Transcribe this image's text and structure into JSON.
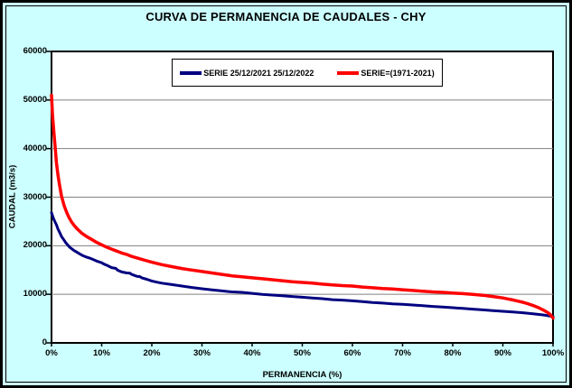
{
  "title": "CURVA DE PERMANENCIA DE CAUDALES - CHY",
  "colors": {
    "background": "#CCFFFF",
    "plot_background": "#FFFFFF",
    "gridline": "#808080",
    "axis": "#000000",
    "series_blue": "#000080",
    "series_red": "#FF0000"
  },
  "chart_data": {
    "type": "line",
    "title": "CURVA DE PERMANENCIA DE CAUDALES - CHY",
    "xlabel": "PERMANENCIA (%)",
    "ylabel": "CAUDAL (m3/s)",
    "xlim": [
      0,
      100
    ],
    "ylim": [
      0,
      60000
    ],
    "y_ticks": [
      0,
      10000,
      20000,
      30000,
      40000,
      50000,
      60000
    ],
    "x_ticks": [
      0,
      10,
      20,
      30,
      40,
      50,
      60,
      70,
      80,
      90,
      100
    ],
    "x_tick_labels": [
      "0%",
      "10%",
      "20%",
      "30%",
      "40%",
      "50%",
      "60%",
      "70%",
      "80%",
      "90%",
      "100%"
    ],
    "grid": "horizontal-only",
    "legend_position": "top-center",
    "series": [
      {
        "name": "SERIE 25/12/2021 25/12/2022",
        "color": "#000080",
        "line_width": 3,
        "points": [
          [
            0,
            26800
          ],
          [
            0.4,
            25600
          ],
          [
            0.8,
            24700
          ],
          [
            1,
            24300
          ],
          [
            1.3,
            23400
          ],
          [
            1.6,
            22800
          ],
          [
            2,
            21900
          ],
          [
            2.4,
            21300
          ],
          [
            2.8,
            20700
          ],
          [
            3.2,
            20200
          ],
          [
            3.6,
            19700
          ],
          [
            4,
            19400
          ],
          [
            4.5,
            19000
          ],
          [
            5,
            18700
          ],
          [
            5.5,
            18400
          ],
          [
            6,
            18100
          ],
          [
            6.5,
            17850
          ],
          [
            7,
            17650
          ],
          [
            7.5,
            17500
          ],
          [
            8,
            17300
          ],
          [
            9,
            16850
          ],
          [
            10,
            16500
          ],
          [
            10.5,
            16200
          ],
          [
            11,
            16000
          ],
          [
            12,
            15500
          ],
          [
            12.8,
            15350
          ],
          [
            13.2,
            14950
          ],
          [
            14,
            14600
          ],
          [
            15,
            14400
          ],
          [
            15.6,
            14350
          ],
          [
            16,
            14100
          ],
          [
            17,
            13700
          ],
          [
            17.6,
            13650
          ],
          [
            18,
            13400
          ],
          [
            19,
            13100
          ],
          [
            20,
            12750
          ],
          [
            21,
            12500
          ],
          [
            22,
            12300
          ],
          [
            24,
            12000
          ],
          [
            26,
            11700
          ],
          [
            28,
            11400
          ],
          [
            30,
            11150
          ],
          [
            32,
            10900
          ],
          [
            34,
            10700
          ],
          [
            36,
            10500
          ],
          [
            38,
            10400
          ],
          [
            40,
            10200
          ],
          [
            42,
            10000
          ],
          [
            44,
            9850
          ],
          [
            46,
            9700
          ],
          [
            48,
            9550
          ],
          [
            50,
            9400
          ],
          [
            52,
            9250
          ],
          [
            54,
            9100
          ],
          [
            56,
            8900
          ],
          [
            58,
            8800
          ],
          [
            60,
            8650
          ],
          [
            62,
            8500
          ],
          [
            64,
            8300
          ],
          [
            66,
            8200
          ],
          [
            68,
            8050
          ],
          [
            70,
            7950
          ],
          [
            72,
            7800
          ],
          [
            74,
            7650
          ],
          [
            76,
            7500
          ],
          [
            78,
            7400
          ],
          [
            80,
            7250
          ],
          [
            82,
            7100
          ],
          [
            84,
            6950
          ],
          [
            86,
            6800
          ],
          [
            88,
            6650
          ],
          [
            90,
            6500
          ],
          [
            92,
            6350
          ],
          [
            94,
            6200
          ],
          [
            96,
            6000
          ],
          [
            98,
            5750
          ],
          [
            99,
            5600
          ],
          [
            100,
            5400
          ]
        ]
      },
      {
        "name": "SERIE=(1971-2021)",
        "color": "#FF0000",
        "line_width": 3.5,
        "points": [
          [
            0,
            51000
          ],
          [
            0.2,
            47000
          ],
          [
            0.5,
            43000
          ],
          [
            0.8,
            39500
          ],
          [
            1,
            37000
          ],
          [
            1.3,
            34500
          ],
          [
            1.6,
            32500
          ],
          [
            2,
            30200
          ],
          [
            2.5,
            28300
          ],
          [
            3,
            26900
          ],
          [
            3.5,
            25800
          ],
          [
            4,
            24900
          ],
          [
            4.5,
            24200
          ],
          [
            5,
            23600
          ],
          [
            5.5,
            23100
          ],
          [
            6,
            22600
          ],
          [
            7,
            21900
          ],
          [
            8,
            21300
          ],
          [
            9,
            20700
          ],
          [
            10,
            20200
          ],
          [
            11,
            19700
          ],
          [
            12,
            19300
          ],
          [
            13,
            18900
          ],
          [
            14,
            18500
          ],
          [
            15,
            18200
          ],
          [
            16,
            17800
          ],
          [
            17,
            17500
          ],
          [
            18,
            17200
          ],
          [
            19,
            16900
          ],
          [
            20,
            16600
          ],
          [
            22,
            16100
          ],
          [
            24,
            15700
          ],
          [
            26,
            15300
          ],
          [
            28,
            15000
          ],
          [
            30,
            14700
          ],
          [
            32,
            14400
          ],
          [
            34,
            14100
          ],
          [
            36,
            13800
          ],
          [
            38,
            13600
          ],
          [
            40,
            13400
          ],
          [
            42,
            13200
          ],
          [
            44,
            13000
          ],
          [
            46,
            12800
          ],
          [
            48,
            12600
          ],
          [
            50,
            12450
          ],
          [
            52,
            12300
          ],
          [
            54,
            12100
          ],
          [
            56,
            11950
          ],
          [
            58,
            11800
          ],
          [
            60,
            11700
          ],
          [
            62,
            11500
          ],
          [
            64,
            11350
          ],
          [
            66,
            11200
          ],
          [
            68,
            11100
          ],
          [
            70,
            10950
          ],
          [
            72,
            10800
          ],
          [
            74,
            10650
          ],
          [
            76,
            10500
          ],
          [
            78,
            10400
          ],
          [
            80,
            10250
          ],
          [
            82,
            10150
          ],
          [
            84,
            10000
          ],
          [
            86,
            9800
          ],
          [
            88,
            9550
          ],
          [
            90,
            9250
          ],
          [
            91,
            9050
          ],
          [
            92,
            8850
          ],
          [
            93,
            8600
          ],
          [
            94,
            8350
          ],
          [
            95,
            8050
          ],
          [
            96,
            7700
          ],
          [
            97,
            7300
          ],
          [
            98,
            6800
          ],
          [
            99,
            6200
          ],
          [
            99.5,
            5800
          ],
          [
            100,
            5100
          ]
        ]
      }
    ]
  }
}
